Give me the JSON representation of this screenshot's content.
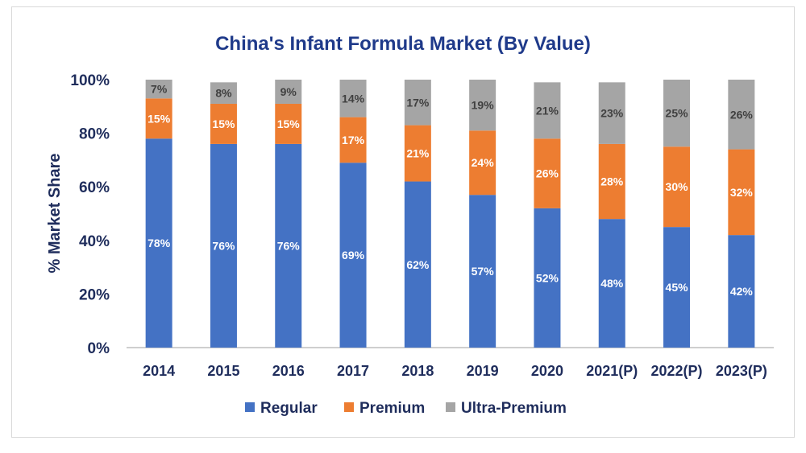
{
  "chart_data": {
    "type": "bar",
    "stacked": true,
    "title": "China's Infant Formula Market (By Value)",
    "xlabel": "",
    "ylabel": "% Market Share",
    "ylim": [
      0,
      100
    ],
    "yticks": [
      "0%",
      "20%",
      "40%",
      "60%",
      "80%",
      "100%"
    ],
    "grid": false,
    "legend_position": "bottom",
    "categories": [
      "2014",
      "2015",
      "2016",
      "2017",
      "2018",
      "2019",
      "2020",
      "2021(P)",
      "2022(P)",
      "2023(P)"
    ],
    "series": [
      {
        "name": "Regular",
        "color": "#4472c4",
        "label_color": "#ffffff",
        "values": [
          78,
          76,
          76,
          69,
          62,
          57,
          52,
          48,
          45,
          42
        ],
        "labels": [
          "78%",
          "76%",
          "76%",
          "69%",
          "62%",
          "57%",
          "52%",
          "48%",
          "45%",
          "42%"
        ]
      },
      {
        "name": "Premium",
        "color": "#ed7d31",
        "label_color": "#ffffff",
        "values": [
          15,
          15,
          15,
          17,
          21,
          24,
          26,
          28,
          30,
          32
        ],
        "labels": [
          "15%",
          "15%",
          "15%",
          "17%",
          "21%",
          "24%",
          "26%",
          "28%",
          "30%",
          "32%"
        ]
      },
      {
        "name": "Ultra-Premium",
        "color": "#a5a5a5",
        "label_color": "#404040",
        "values": [
          7,
          8,
          9,
          14,
          17,
          19,
          21,
          23,
          25,
          26
        ],
        "labels": [
          "7%",
          "8%",
          "9%",
          "14%",
          "17%",
          "19%",
          "21%",
          "23%",
          "25%",
          "26%"
        ]
      }
    ]
  }
}
